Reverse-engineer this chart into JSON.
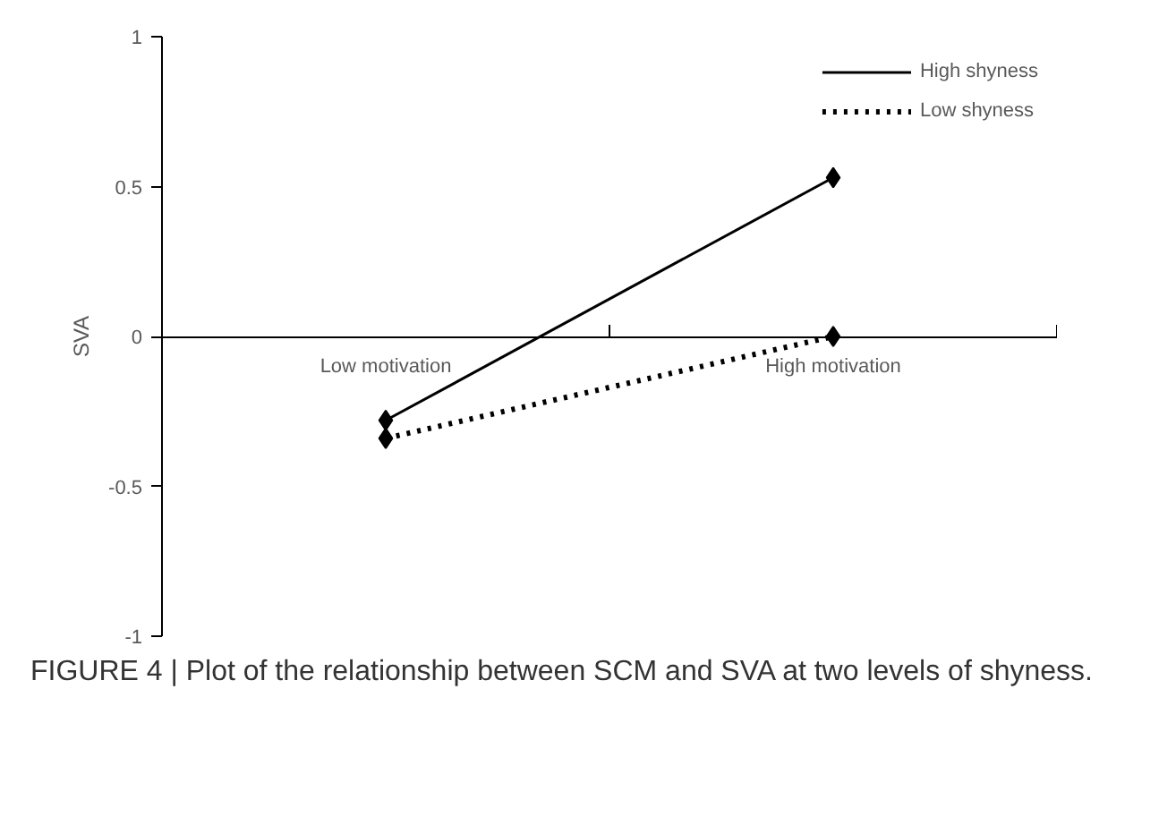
{
  "chart_data": {
    "type": "line",
    "ylabel": "SVA",
    "categories": [
      "Low motivation",
      "High motivation"
    ],
    "series": [
      {
        "name": "High shyness",
        "color": "#000000",
        "values": [
          -0.28,
          0.53
        ],
        "line_style": "solid"
      },
      {
        "name": "Low shyness",
        "color": "#000000",
        "values": [
          -0.34,
          0.0
        ],
        "line_style": "dotted"
      }
    ],
    "ylim": [
      -1,
      1
    ],
    "yticks": [
      -1,
      -0.5,
      0,
      0.5,
      1
    ],
    "marker": "diamond",
    "legend": "top right",
    "grid": false,
    "annotations": [
      "FIGURE 4 | Plot of the relationship between SCM and SVA at two levels of shyness."
    ]
  }
}
